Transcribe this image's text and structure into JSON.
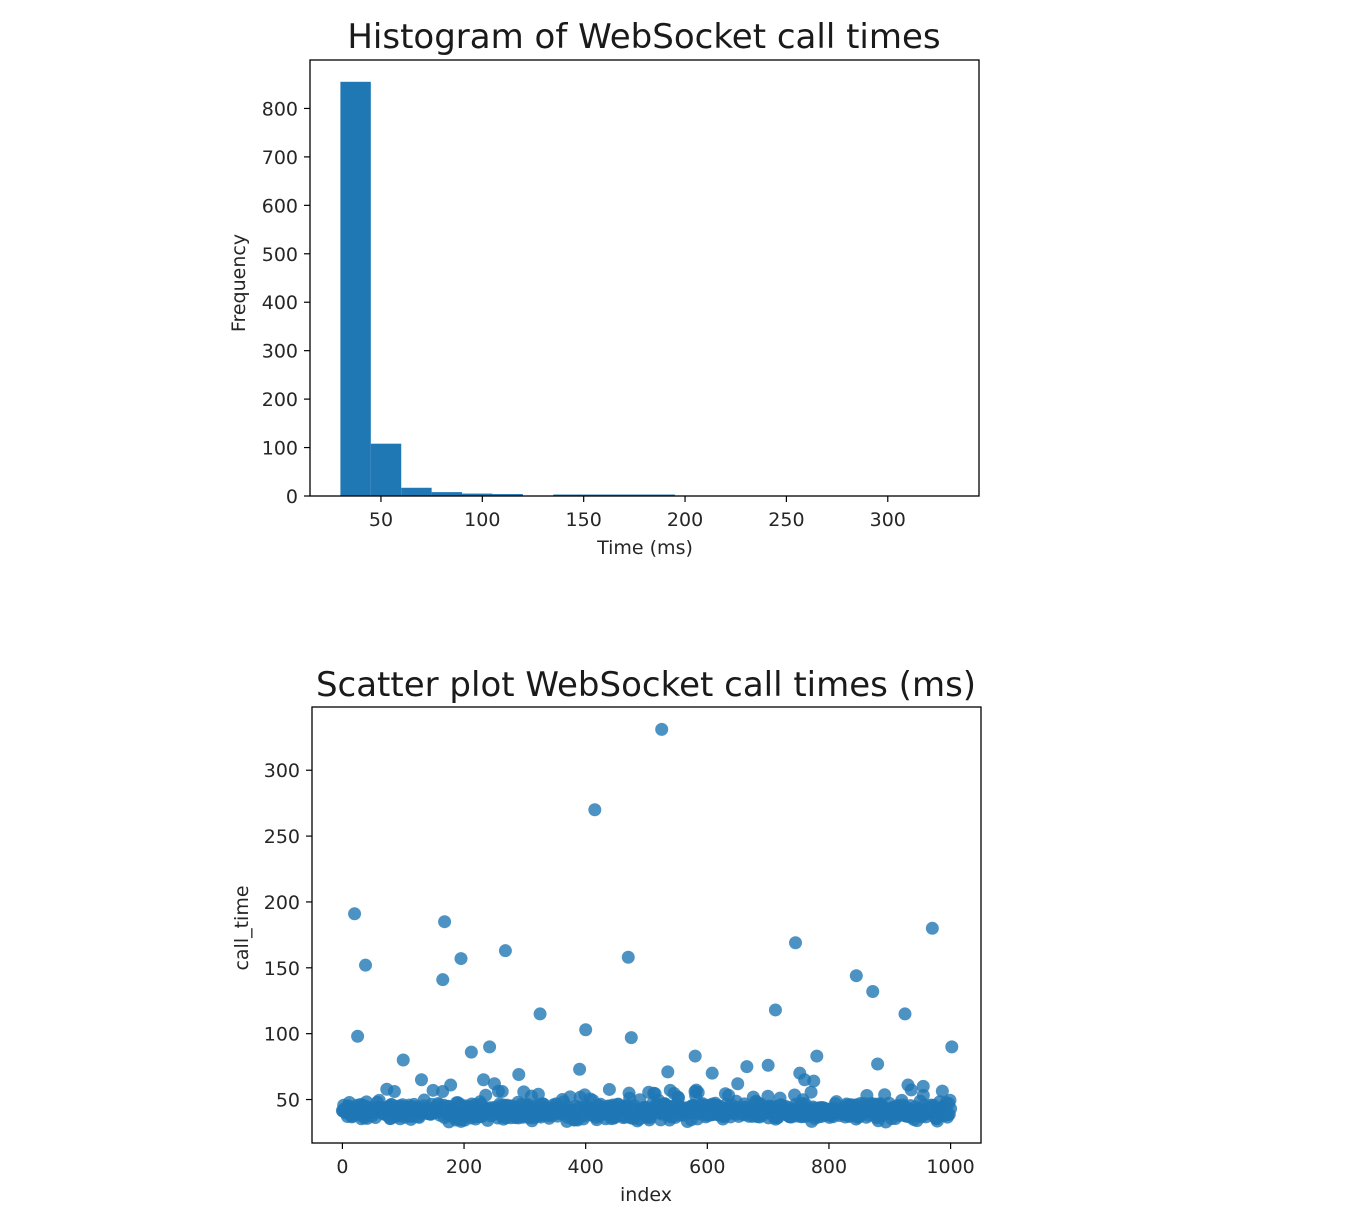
{
  "chart_data": [
    {
      "type": "bar",
      "title": "Histogram of WebSocket call times",
      "xlabel": "Time (ms)",
      "ylabel": "Frequency",
      "xlim": [
        15,
        345
      ],
      "ylim": [
        0,
        900
      ],
      "xticks": [
        50,
        100,
        150,
        200,
        250,
        300
      ],
      "yticks": [
        0,
        100,
        200,
        300,
        400,
        500,
        600,
        700,
        800
      ],
      "bins": [
        {
          "x0": 30,
          "x1": 45,
          "value": 855
        },
        {
          "x0": 45,
          "x1": 60,
          "value": 108
        },
        {
          "x0": 60,
          "x1": 75,
          "value": 17
        },
        {
          "x0": 75,
          "x1": 90,
          "value": 8
        },
        {
          "x0": 90,
          "x1": 105,
          "value": 5
        },
        {
          "x0": 105,
          "x1": 120,
          "value": 4
        },
        {
          "x0": 120,
          "x1": 135,
          "value": 0
        },
        {
          "x0": 135,
          "x1": 150,
          "value": 3
        },
        {
          "x0": 150,
          "x1": 165,
          "value": 3
        },
        {
          "x0": 165,
          "x1": 180,
          "value": 3
        },
        {
          "x0": 180,
          "x1": 195,
          "value": 3
        },
        {
          "x0": 195,
          "x1": 210,
          "value": 0
        },
        {
          "x0": 210,
          "x1": 225,
          "value": 0
        },
        {
          "x0": 225,
          "x1": 240,
          "value": 0
        },
        {
          "x0": 240,
          "x1": 255,
          "value": 0
        },
        {
          "x0": 255,
          "x1": 270,
          "value": 1
        },
        {
          "x0": 270,
          "x1": 285,
          "value": 0
        },
        {
          "x0": 285,
          "x1": 300,
          "value": 0
        },
        {
          "x0": 300,
          "x1": 315,
          "value": 0
        },
        {
          "x0": 315,
          "x1": 330,
          "value": 1
        }
      ],
      "color": "#1f77b4"
    },
    {
      "type": "scatter",
      "title": "Scatter plot WebSocket call times (ms)",
      "xlabel": "index",
      "ylabel": "call_time",
      "xlim": [
        -50,
        1050
      ],
      "ylim": [
        17,
        348
      ],
      "xticks": [
        0,
        200,
        400,
        600,
        800,
        1000
      ],
      "yticks": [
        50,
        100,
        150,
        200,
        250,
        300
      ],
      "color": "#1f77b4",
      "alpha": 0.8,
      "outliers": [
        {
          "x": 20,
          "y": 191
        },
        {
          "x": 38,
          "y": 152
        },
        {
          "x": 25,
          "y": 98
        },
        {
          "x": 168,
          "y": 185
        },
        {
          "x": 165,
          "y": 141
        },
        {
          "x": 195,
          "y": 157
        },
        {
          "x": 268,
          "y": 163
        },
        {
          "x": 325,
          "y": 115
        },
        {
          "x": 415,
          "y": 270
        },
        {
          "x": 470,
          "y": 158
        },
        {
          "x": 525,
          "y": 331
        },
        {
          "x": 400,
          "y": 103
        },
        {
          "x": 475,
          "y": 97
        },
        {
          "x": 745,
          "y": 169
        },
        {
          "x": 712,
          "y": 118
        },
        {
          "x": 845,
          "y": 144
        },
        {
          "x": 872,
          "y": 132
        },
        {
          "x": 925,
          "y": 115
        },
        {
          "x": 970,
          "y": 180
        },
        {
          "x": 1002,
          "y": 90
        },
        {
          "x": 100,
          "y": 80
        },
        {
          "x": 212,
          "y": 86
        },
        {
          "x": 242,
          "y": 90
        },
        {
          "x": 290,
          "y": 69
        },
        {
          "x": 390,
          "y": 73
        },
        {
          "x": 535,
          "y": 71
        },
        {
          "x": 580,
          "y": 83
        },
        {
          "x": 608,
          "y": 70
        },
        {
          "x": 665,
          "y": 75
        },
        {
          "x": 700,
          "y": 76
        },
        {
          "x": 780,
          "y": 83
        },
        {
          "x": 880,
          "y": 77
        },
        {
          "x": 130,
          "y": 65
        },
        {
          "x": 232,
          "y": 65
        },
        {
          "x": 250,
          "y": 62
        },
        {
          "x": 178,
          "y": 61
        },
        {
          "x": 650,
          "y": 62
        },
        {
          "x": 752,
          "y": 70
        },
        {
          "x": 760,
          "y": 65
        },
        {
          "x": 930,
          "y": 61
        },
        {
          "x": 955,
          "y": 60
        },
        {
          "x": 775,
          "y": 64
        }
      ],
      "bulk": {
        "count": 960,
        "x_range": [
          0,
          1000
        ],
        "y_range": [
          33,
          58
        ],
        "y_center": 41
      }
    }
  ]
}
